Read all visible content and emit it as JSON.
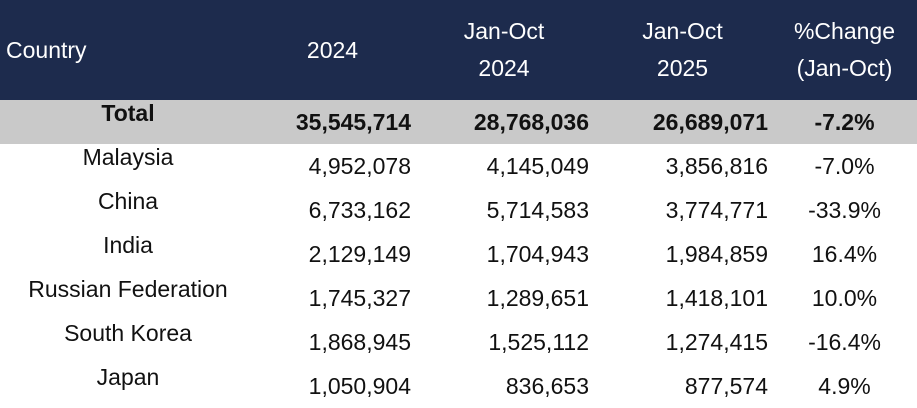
{
  "table": {
    "header": [
      [
        "Country"
      ],
      [
        "2024"
      ],
      [
        "Jan-Oct",
        "2024"
      ],
      [
        "Jan-Oct",
        "2025"
      ],
      [
        "%Change",
        "(Jan-Oct)"
      ]
    ],
    "rows": [
      [
        "Total",
        "35,545,714",
        "28,768,036",
        "26,689,071",
        "-7.2%"
      ],
      [
        "Malaysia",
        "4,952,078",
        "4,145,049",
        "3,856,816",
        "-7.0%"
      ],
      [
        "China",
        "6,733,162",
        "5,714,583",
        "3,774,771",
        "-33.9%"
      ],
      [
        "India",
        "2,129,149",
        "1,704,943",
        "1,984,859",
        "16.4%"
      ],
      [
        "Russian Federation",
        "1,745,327",
        "1,289,651",
        "1,418,101",
        "10.0%"
      ],
      [
        "South Korea",
        "1,868,945",
        "1,525,112",
        "1,274,415",
        "-16.4%"
      ],
      [
        "Japan",
        "1,050,904",
        "836,653",
        "877,574",
        "4.9%"
      ]
    ]
  }
}
